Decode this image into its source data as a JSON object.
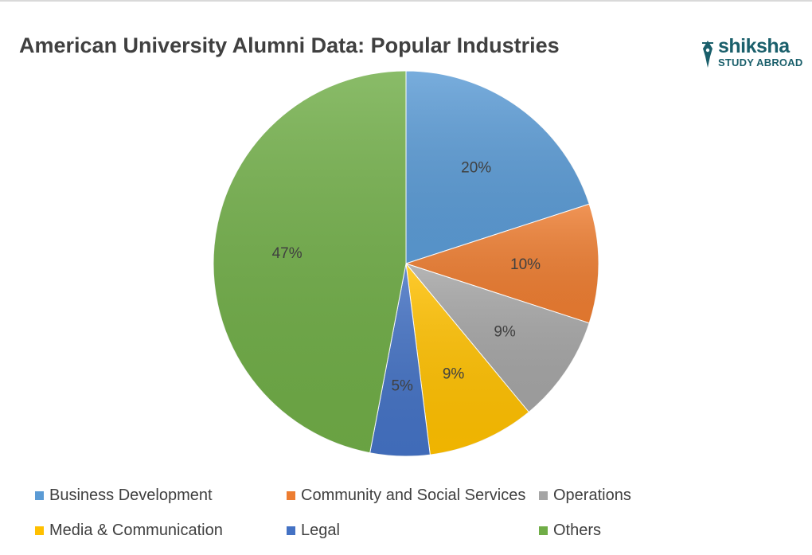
{
  "chart_data": {
    "type": "pie",
    "title": "American University Alumni Data: Popular Industries",
    "categories": [
      "Business Development",
      "Community and Social Services",
      "Operations",
      "Media & Communication",
      "Legal",
      "Others"
    ],
    "values": [
      20,
      10,
      9,
      9,
      5,
      47
    ],
    "data_labels": [
      "20%",
      "10%",
      "9%",
      "9%",
      "5%",
      "47%"
    ],
    "colors": [
      "#5b9bd5",
      "#ed7d31",
      "#a5a5a5",
      "#ffc000",
      "#4472c4",
      "#70ad47"
    ],
    "legend_position": "bottom"
  },
  "logo": {
    "word": "shiksha",
    "sub": "STUDY ABROAD",
    "color": "#1a5f6b"
  }
}
